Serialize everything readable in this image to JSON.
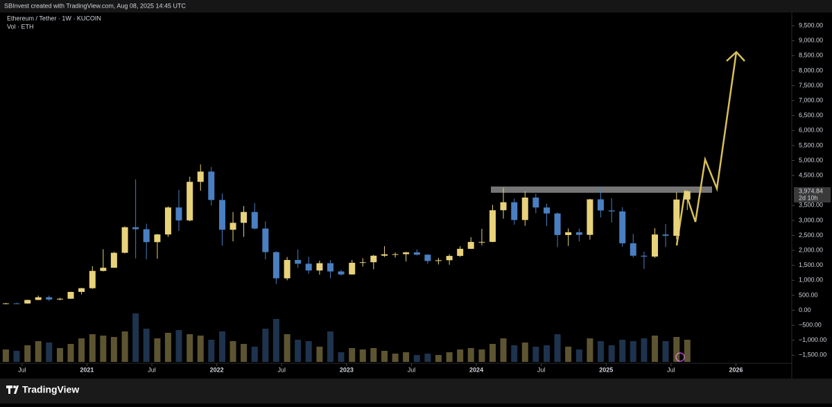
{
  "header": {
    "attribution": "SBInvest created with TradingView.com, Aug 08, 2025 14:45 UTC"
  },
  "footer": {
    "brand": "TradingView"
  },
  "chart_data": {
    "type": "candlestick",
    "title": "Ethereum / Tether · 1W · KUCOIN",
    "subtitle": "Vol · ETH",
    "up_color": "#e8d27a",
    "down_color": "#4a7fc1",
    "grid": false,
    "xlim": [
      2020.33,
      2026.43
    ],
    "xticks": [
      {
        "value": 2020.5,
        "label": "Jul"
      },
      2021,
      {
        "value": 2021.5,
        "label": "Jul"
      },
      2022,
      {
        "value": 2022.5,
        "label": "Jul"
      },
      2023,
      {
        "value": 2023.5,
        "label": "Jul"
      },
      2024,
      {
        "value": 2024.5,
        "label": "Jul"
      },
      2025,
      {
        "value": 2025.5,
        "label": "Jul"
      },
      2026
    ],
    "ylim": [
      -1725,
      10360
    ],
    "yticks": [
      {
        "value": 9500,
        "label": "9,500.00"
      },
      {
        "value": 9000,
        "label": "9,000.00"
      },
      {
        "value": 8500,
        "label": "8,500.00"
      },
      {
        "value": 8000,
        "label": "8,000.00"
      },
      {
        "value": 7500,
        "label": "7,500.00"
      },
      {
        "value": 7000,
        "label": "7,000.00"
      },
      {
        "value": 6500,
        "label": "6,500.00"
      },
      {
        "value": 6000,
        "label": "6,000.00"
      },
      {
        "value": 5500,
        "label": "5,500.00"
      },
      {
        "value": 5000,
        "label": "5,000.00"
      },
      {
        "value": 4500,
        "label": "4,500.00"
      },
      {
        "value": 3500,
        "label": "3,500.00"
      },
      {
        "value": 3000,
        "label": "3,000.00"
      },
      {
        "value": 2500,
        "label": "2,500.00"
      },
      {
        "value": 2000,
        "label": "2,000.00"
      },
      {
        "value": 1500,
        "label": "1,500.00"
      },
      {
        "value": 1000,
        "label": "1,000.00"
      },
      {
        "value": 500,
        "label": "500.00"
      },
      {
        "value": 0,
        "label": "0.00"
      },
      {
        "value": -500,
        "label": "−500.00"
      },
      {
        "value": -1000,
        "label": "−1,000.00"
      },
      {
        "value": -1500,
        "label": "−1,500.00"
      }
    ],
    "last_price": {
      "value": 3974.84,
      "label": "3,974.84"
    },
    "countdown": "2d 10h",
    "x": [
      2020.375,
      2020.458,
      2020.542,
      2020.625,
      2020.708,
      2020.792,
      2020.875,
      2020.958,
      2021.042,
      2021.125,
      2021.208,
      2021.292,
      2021.375,
      2021.458,
      2021.542,
      2021.625,
      2021.708,
      2021.792,
      2021.875,
      2021.958,
      2022.042,
      2022.125,
      2022.208,
      2022.292,
      2022.375,
      2022.458,
      2022.542,
      2022.625,
      2022.708,
      2022.792,
      2022.875,
      2022.958,
      2023.042,
      2023.125,
      2023.208,
      2023.292,
      2023.375,
      2023.458,
      2023.542,
      2023.625,
      2023.708,
      2023.792,
      2023.875,
      2023.958,
      2024.042,
      2024.125,
      2024.208,
      2024.292,
      2024.375,
      2024.458,
      2024.542,
      2024.625,
      2024.708,
      2024.792,
      2024.875,
      2024.958,
      2025.042,
      2025.125,
      2025.208,
      2025.292,
      2025.375,
      2025.458,
      2025.542,
      2025.625
    ],
    "open": [
      217,
      231,
      226,
      345,
      434,
      360,
      386,
      613,
      737,
      1314,
      1419,
      1919,
      2773,
      2707,
      2275,
      2531,
      3433,
      3001,
      4288,
      4631,
      3683,
      2688,
      2920,
      3282,
      2729,
      1942,
      1067,
      1680,
      1554,
      1328,
      1572,
      1296,
      1196,
      1585,
      1605,
      1822,
      1870,
      1873,
      1934,
      1856,
      1645,
      1671,
      1815,
      2052,
      2282,
      2283,
      3340,
      3607,
      3014,
      3763,
      3432,
      3232,
      2513,
      2603,
      2518,
      3704,
      3332,
      3301,
      2237,
      1822,
      1793,
      2530,
      2486,
      3698
    ],
    "high": [
      245,
      250,
      350,
      490,
      490,
      415,
      620,
      750,
      1470,
      2040,
      1950,
      2800,
      4370,
      2890,
      2550,
      3470,
      4020,
      4460,
      4870,
      4780,
      3900,
      3280,
      3480,
      3580,
      2970,
      1970,
      1780,
      2030,
      1790,
      1660,
      1680,
      1350,
      1680,
      1740,
      1850,
      2140,
      1930,
      1950,
      2030,
      1870,
      1750,
      1870,
      2140,
      2440,
      2720,
      3520,
      4090,
      3730,
      3970,
      3890,
      3560,
      3270,
      2730,
      2720,
      3720,
      4100,
      3740,
      3440,
      2550,
      1960,
      2740,
      2880,
      3940,
      4000
    ],
    "low": [
      200,
      215,
      220,
      340,
      310,
      335,
      380,
      530,
      715,
      1300,
      1420,
      1900,
      1730,
      1700,
      1720,
      2450,
      2650,
      2970,
      3990,
      3500,
      2160,
      2300,
      2450,
      2700,
      1700,
      880,
      1000,
      1420,
      1220,
      1190,
      1070,
      1160,
      1190,
      1460,
      1370,
      1780,
      1760,
      1630,
      1830,
      1550,
      1530,
      1520,
      1780,
      2050,
      2170,
      2270,
      3060,
      2860,
      2820,
      3240,
      2810,
      2110,
      2150,
      2300,
      2360,
      3100,
      2930,
      2120,
      1760,
      1380,
      1750,
      2110,
      2370,
      3350
    ],
    "close": [
      231,
      226,
      345,
      434,
      360,
      386,
      613,
      737,
      1314,
      1419,
      1919,
      2773,
      2707,
      2275,
      2531,
      3433,
      3001,
      4288,
      4631,
      3683,
      2688,
      2920,
      3282,
      2729,
      1942,
      1067,
      1680,
      1554,
      1328,
      1572,
      1296,
      1196,
      1585,
      1605,
      1822,
      1870,
      1873,
      1934,
      1856,
      1645,
      1671,
      1815,
      2052,
      2282,
      2283,
      3340,
      3607,
      3014,
      3763,
      3432,
      3232,
      2513,
      2603,
      2518,
      3704,
      3332,
      3301,
      2237,
      1822,
      1793,
      2530,
      2486,
      3698,
      3975
    ],
    "volume": [
      18,
      16,
      24,
      30,
      28,
      20,
      26,
      34,
      40,
      38,
      36,
      44,
      70,
      48,
      34,
      42,
      46,
      40,
      38,
      32,
      44,
      30,
      26,
      22,
      48,
      62,
      40,
      32,
      30,
      22,
      44,
      14,
      20,
      18,
      20,
      16,
      12,
      14,
      10,
      12,
      10,
      14,
      18,
      20,
      18,
      26,
      34,
      24,
      28,
      22,
      24,
      40,
      22,
      18,
      34,
      30,
      24,
      32,
      30,
      34,
      38,
      30,
      36,
      32
    ]
  }
}
